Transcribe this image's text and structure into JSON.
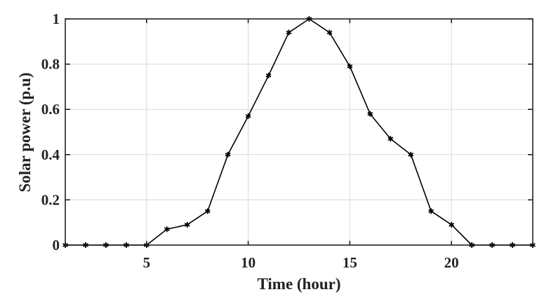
{
  "chart_data": {
    "type": "line",
    "title": "",
    "xlabel": "Time (hour)",
    "ylabel": "Solar power (p.u)",
    "xlim": [
      1,
      24
    ],
    "ylim": [
      0,
      1
    ],
    "x_ticks": [
      5,
      10,
      15,
      20
    ],
    "x_tick_labels": [
      "5",
      "10",
      "15",
      "20"
    ],
    "y_ticks": [
      0,
      0.2,
      0.4,
      0.6,
      0.8,
      1
    ],
    "y_tick_labels": [
      "0",
      "0.2",
      "0.4",
      "0.6",
      "0.8",
      "1"
    ],
    "grid": true,
    "legend": null,
    "series": [
      {
        "name": "Solar power",
        "marker": "star",
        "color": "#000000",
        "x": [
          1,
          2,
          3,
          4,
          5,
          6,
          7,
          8,
          9,
          10,
          11,
          12,
          13,
          14,
          15,
          16,
          17,
          18,
          19,
          20,
          21,
          22,
          23,
          24
        ],
        "values": [
          0,
          0,
          0,
          0,
          0,
          0.07,
          0.09,
          0.15,
          0.4,
          0.57,
          0.75,
          0.94,
          1.0,
          0.94,
          0.79,
          0.58,
          0.47,
          0.4,
          0.15,
          0.09,
          0,
          0,
          0,
          0
        ]
      }
    ]
  },
  "colors": {
    "line": "#000000",
    "grid": "#d9d9d9",
    "axis": "#222222",
    "background": "#ffffff"
  }
}
